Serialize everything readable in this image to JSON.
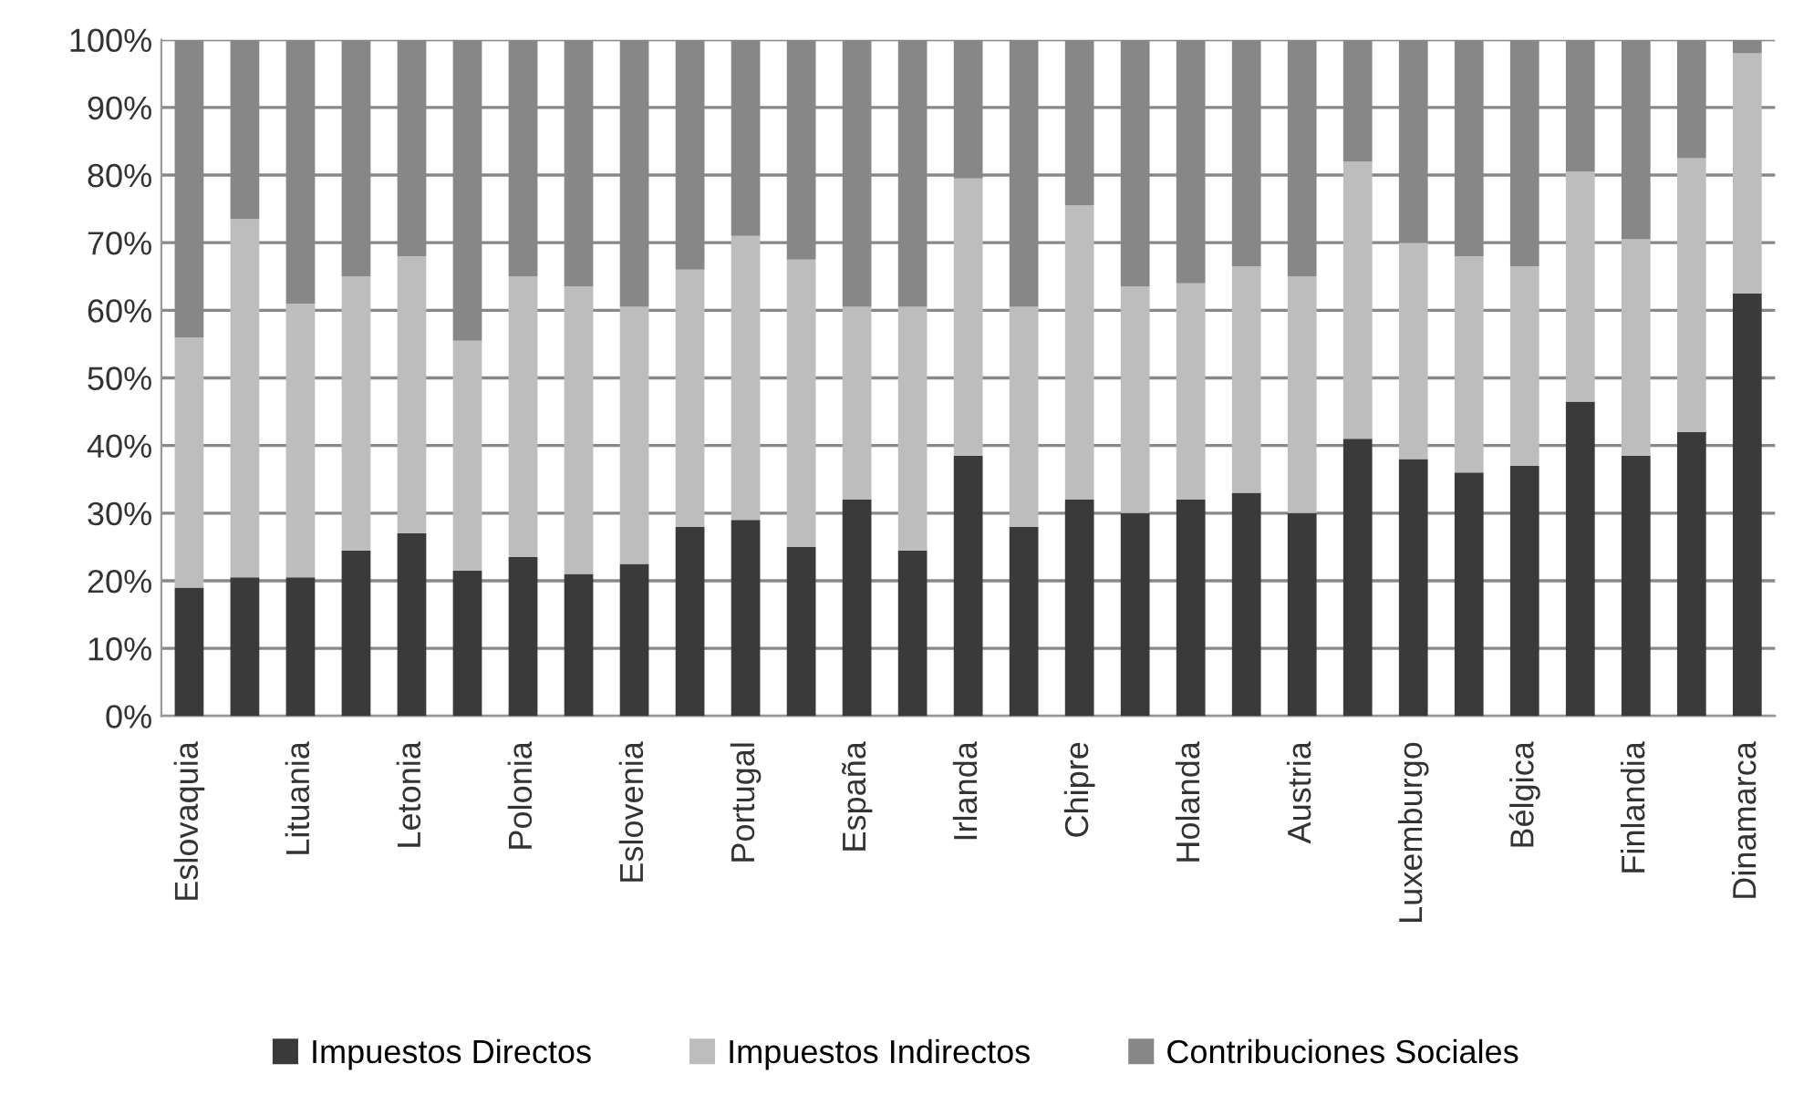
{
  "chart_data": {
    "type": "bar",
    "stacked": true,
    "categories": [
      "Eslovaquia",
      null,
      "Lituania",
      null,
      "Letonia",
      null,
      "Polonia",
      null,
      "Eslovenia",
      null,
      "Portugal",
      null,
      "España",
      null,
      "Irlanda",
      null,
      "Chipre",
      null,
      "Holanda",
      null,
      "Austria",
      null,
      "Luxemburgo",
      null,
      "Bélgica",
      null,
      "Finlandia",
      null,
      "Dinamarca"
    ],
    "series": [
      {
        "name": "Impuestos Directos",
        "color": "#3a3a3a",
        "values": [
          19,
          20.5,
          20.5,
          24.5,
          27,
          21.5,
          23.5,
          21,
          22.5,
          28,
          29,
          25,
          32,
          24.5,
          38.5,
          28,
          32,
          30,
          32,
          33,
          30,
          41,
          38,
          36,
          37,
          46.5,
          38.5,
          42,
          62.5
        ]
      },
      {
        "name": "Impuestos Indirectos",
        "color": "#bdbdbd",
        "values": [
          37,
          53,
          40.5,
          40.5,
          41,
          34,
          41.5,
          42.5,
          38,
          38,
          42,
          42.5,
          28.5,
          36,
          41,
          32.5,
          43.5,
          33.5,
          32,
          33.5,
          35,
          41,
          32,
          32,
          29.5,
          34,
          32,
          40.5,
          35.5
        ]
      },
      {
        "name": "Contribuciones Sociales",
        "color": "#878787",
        "values": [
          44,
          26.5,
          39,
          35,
          32,
          44.5,
          35,
          36.5,
          39.5,
          34,
          29,
          32.5,
          39.5,
          39.5,
          20.5,
          39.5,
          24.5,
          36.5,
          36,
          33.5,
          35,
          18,
          30,
          32,
          33.5,
          19.5,
          29.5,
          17.5,
          2
        ]
      }
    ],
    "ylim": [
      0,
      100
    ],
    "yticks": [
      {
        "value": 0,
        "label": "0%"
      },
      {
        "value": 10,
        "label": "10%"
      },
      {
        "value": 20,
        "label": "20%"
      },
      {
        "value": 30,
        "label": "30%"
      },
      {
        "value": 40,
        "label": "40%"
      },
      {
        "value": 50,
        "label": "50%"
      },
      {
        "value": 60,
        "label": "60%"
      },
      {
        "value": 70,
        "label": "70%"
      },
      {
        "value": 80,
        "label": "80%"
      },
      {
        "value": 90,
        "label": "90%"
      },
      {
        "value": 100,
        "label": "100%"
      }
    ],
    "grid": "y",
    "legend": "bottom"
  }
}
